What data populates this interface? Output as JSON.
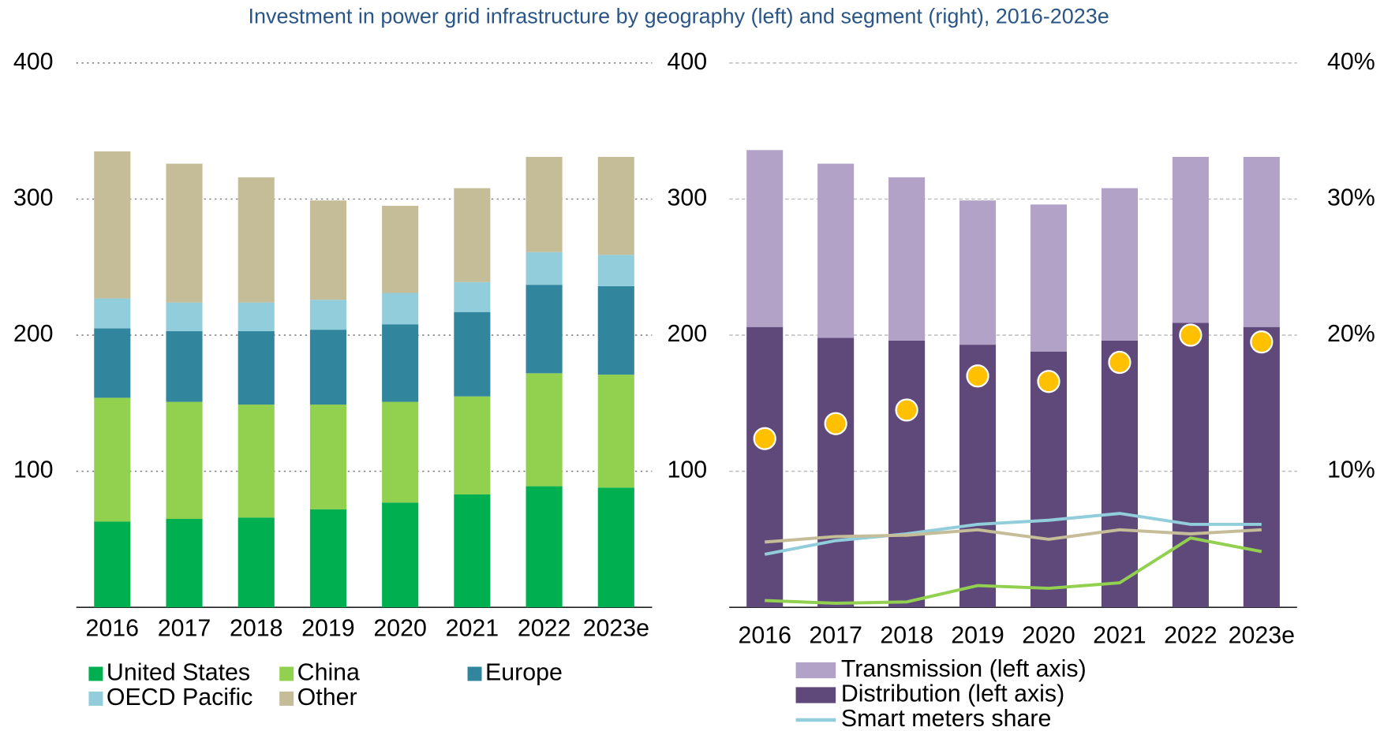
{
  "title": "Investment in power grid infrastructure by geography (left) and segment (right), 2016-2023e",
  "chart_data": [
    {
      "type": "bar",
      "categories": [
        "2016",
        "2017",
        "2018",
        "2019",
        "2020",
        "2021",
        "2022",
        "2023e"
      ],
      "ylim": [
        0,
        400
      ],
      "yticks": [
        100,
        200,
        300,
        400
      ],
      "grid": true,
      "series": [
        {
          "name": "United States",
          "color": "#00b050",
          "values": [
            63,
            65,
            66,
            72,
            77,
            83,
            89,
            88
          ]
        },
        {
          "name": "China",
          "color": "#92d050",
          "values": [
            91,
            86,
            83,
            77,
            74,
            72,
            83,
            83
          ]
        },
        {
          "name": "Europe",
          "color": "#31859c",
          "values": [
            51,
            52,
            54,
            55,
            57,
            62,
            65,
            65
          ]
        },
        {
          "name": "OECD Pacific",
          "color": "#92cddc",
          "values": [
            22,
            21,
            21,
            22,
            23,
            22,
            24,
            23
          ]
        },
        {
          "name": "Other",
          "color": "#c4bd97",
          "values": [
            108,
            102,
            92,
            73,
            64,
            69,
            70,
            72
          ]
        }
      ]
    },
    {
      "type": "bar",
      "categories": [
        "2016",
        "2017",
        "2018",
        "2019",
        "2020",
        "2021",
        "2022",
        "2023e"
      ],
      "ylim": [
        0,
        400
      ],
      "yticks": [
        100,
        200,
        300,
        400
      ],
      "y2lim": [
        0,
        40
      ],
      "y2ticks": [
        {
          "value": 10,
          "label": "10%"
        },
        {
          "value": 20,
          "label": "20%"
        },
        {
          "value": 30,
          "label": "30%"
        },
        {
          "value": 40,
          "label": "40%"
        }
      ],
      "grid": true,
      "series": [
        {
          "name": "Transmission (left axis)",
          "type": "bar",
          "color": "#b3a2c7",
          "values": [
            130,
            128,
            120,
            106,
            108,
            112,
            122,
            125
          ]
        },
        {
          "name": "Distribution (left axis)",
          "type": "bar",
          "color": "#5f497a",
          "values": [
            206,
            198,
            196,
            193,
            188,
            196,
            209,
            206
          ]
        },
        {
          "name": "Smart meters share",
          "type": "line",
          "axis": "y2",
          "color": "#92cddc",
          "values": [
            3.9,
            4.9,
            5.4,
            6.1,
            6.4,
            6.9,
            6.1,
            6.1
          ]
        },
        {
          "type": "line",
          "axis": "y2",
          "color": "#c4bd97",
          "values": [
            4.8,
            5.2,
            5.3,
            5.7,
            5.0,
            5.7,
            5.4,
            5.7
          ]
        },
        {
          "type": "line",
          "axis": "y2",
          "color": "#92d050",
          "values": [
            0.5,
            0.3,
            0.4,
            1.6,
            1.4,
            1.8,
            5.1,
            4.1
          ]
        },
        {
          "type": "scatter",
          "axis": "y2",
          "color": "#ffc000",
          "values": [
            12.4,
            13.5,
            14.5,
            17.0,
            16.6,
            18.0,
            20.0,
            19.5
          ]
        }
      ]
    }
  ]
}
